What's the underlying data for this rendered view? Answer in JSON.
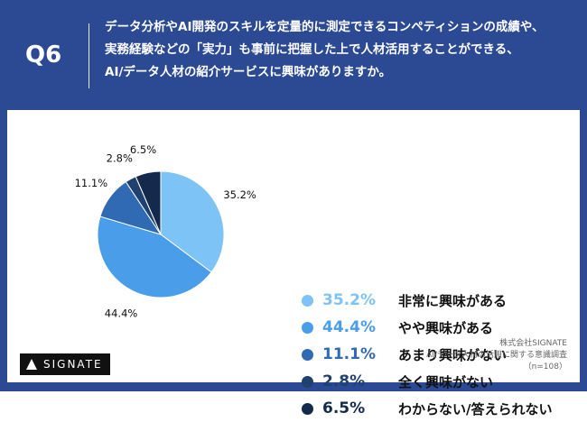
{
  "header": {
    "question_number": "Q6",
    "question_lines": [
      "データ分析やAI開発のスキルを定量的に測定できるコンペティションの成績や、",
      "実務経験などの「実力」も事前に把握した上で人材活用することができる、",
      "AI/データ人材の紹介サービスに興味がありますか。"
    ]
  },
  "chart_data": {
    "type": "pie",
    "title": "",
    "categories": [
      "非常に興味がある",
      "やや興味がある",
      "あまり興味がない",
      "全く興味がない",
      "わからない/答えられない"
    ],
    "values": [
      35.2,
      44.4,
      11.1,
      2.8,
      6.5
    ],
    "value_labels": [
      "35.2%",
      "44.4%",
      "11.1%",
      "2.8%",
      "6.5%"
    ],
    "colors": [
      "#7ec3f5",
      "#4a9de8",
      "#2f6ab3",
      "#1f4170",
      "#142a4d"
    ],
    "legend_placement": "right"
  },
  "footer": {
    "logo_text": "SIGNATE",
    "source_lines": [
      "株式会社SIGNATE",
      "AI/データ人材の活用に関する意識調査",
      "（n=108）"
    ]
  }
}
